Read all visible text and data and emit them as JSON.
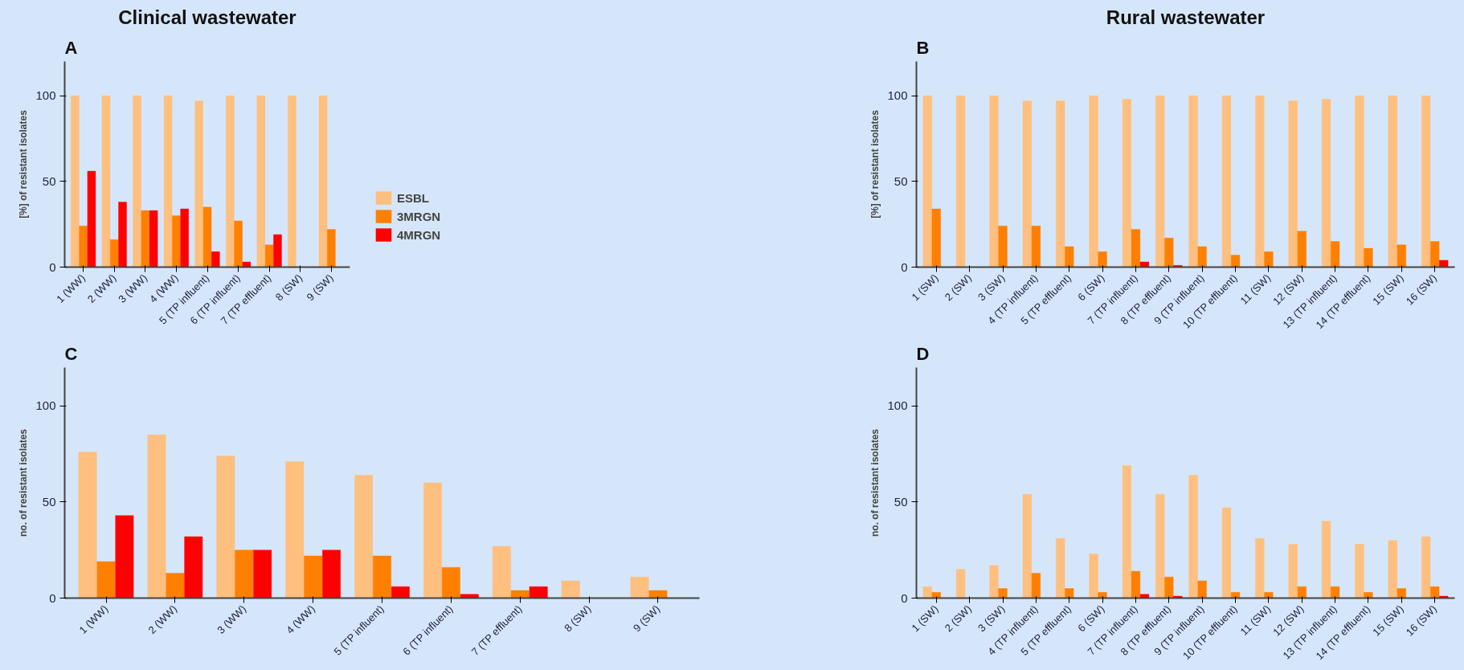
{
  "chart_data": [
    {
      "type": "bar",
      "title": "Clinical wastewater",
      "subtitle": "A",
      "ylabel": "[%] of resistant isolates",
      "categories": [
        "1 (WW)",
        "2 (WW)",
        "3 (WW)",
        "4 (WW)",
        "5 (TP influent)",
        "6 (TP influent)",
        "7 (TP effluent)",
        "8 (SW)",
        "9 (SW)"
      ],
      "ylim": [
        0,
        120
      ],
      "yticks": [
        0,
        50,
        100
      ],
      "grid": false,
      "legend": "right",
      "series": [
        {
          "name": "ESBL",
          "color": "#ffbf7f",
          "values": [
            100,
            100,
            100,
            100,
            97,
            100,
            100,
            100,
            100
          ]
        },
        {
          "name": "3MRGN",
          "color": "#ff8000",
          "values": [
            24,
            16,
            33,
            30,
            35,
            27,
            13,
            0,
            22
          ]
        },
        {
          "name": "4MRGN",
          "color": "#ff0000",
          "values": [
            56,
            38,
            33,
            34,
            9,
            3,
            19,
            0,
            0
          ]
        }
      ]
    },
    {
      "type": "bar",
      "title": "Rural wastewater",
      "subtitle": "B",
      "ylabel": "[%] of resistant isolates",
      "categories": [
        "1 (SW)",
        "2 (SW)",
        "3 (SW)",
        "4 (TP influent)",
        "5 (TP effluent)",
        "6 (SW)",
        "7 (TP influent)",
        "8 (TP effluent)",
        "9 (TP influent)",
        "10 (TP effluent)",
        "11 (SW)",
        "12 (SW)",
        "13 (TP influent)",
        "14 (TP effluent)",
        "15 (SW)",
        "16 (SW)"
      ],
      "ylim": [
        0,
        120
      ],
      "yticks": [
        0,
        50,
        100
      ],
      "grid": false,
      "legend": false,
      "series": [
        {
          "color": "#ffbf7f",
          "values": [
            100,
            100,
            100,
            97,
            97,
            100,
            98,
            100,
            100,
            100,
            100,
            97,
            98,
            100,
            100,
            100
          ]
        },
        {
          "color": "#ff8000",
          "values": [
            34,
            0,
            24,
            24,
            12,
            9,
            22,
            17,
            12,
            7,
            9,
            21,
            15,
            11,
            13,
            15
          ]
        },
        {
          "color": "#ff0000",
          "values": [
            0,
            0,
            0,
            0,
            0,
            0,
            3,
            1,
            0,
            0,
            0,
            0,
            0,
            0,
            0,
            4
          ]
        }
      ]
    },
    {
      "type": "bar",
      "subtitle": "C",
      "ylabel": "no. of resistant isolates",
      "categories": [
        "1 (WW)",
        "2 (WW)",
        "3 (WW)",
        "4 (WW)",
        "5 (TP influent)",
        "6 (TP influent)",
        "7 (TP effluent)",
        "8 (SW)",
        "9 (SW)"
      ],
      "ylim": [
        0,
        120
      ],
      "yticks": [
        0,
        50,
        100
      ],
      "grid": false,
      "legend": false,
      "series": [
        {
          "color": "#ffbf7f",
          "values": [
            76,
            85,
            74,
            71,
            64,
            60,
            27,
            9,
            11
          ]
        },
        {
          "color": "#ff8000",
          "values": [
            19,
            13,
            25,
            22,
            22,
            16,
            4,
            0,
            4
          ]
        },
        {
          "color": "#ff0000",
          "values": [
            43,
            32,
            25,
            25,
            6,
            2,
            6,
            0,
            0
          ]
        }
      ]
    },
    {
      "type": "bar",
      "subtitle": "D",
      "ylabel": "no. of resistant isolates",
      "categories": [
        "1 (SW)",
        "2 (SW)",
        "3 (SW)",
        "4 (TP influent)",
        "5 (TP effluent)",
        "6 (SW)",
        "7 (TP influent)",
        "8 (TP effluent)",
        "9 (TP influent)",
        "10 (TP effluent)",
        "11 (SW)",
        "12 (SW)",
        "13 (TP influent)",
        "14 (TP effluent)",
        "15 (SW)",
        "16 (SW)"
      ],
      "ylim": [
        0,
        120
      ],
      "yticks": [
        0,
        50,
        100
      ],
      "grid": false,
      "legend": false,
      "series": [
        {
          "color": "#ffbf7f",
          "values": [
            6,
            15,
            17,
            54,
            31,
            23,
            69,
            54,
            64,
            47,
            31,
            28,
            40,
            28,
            30,
            32
          ]
        },
        {
          "color": "#ff8000",
          "values": [
            3,
            0,
            5,
            13,
            5,
            3,
            14,
            11,
            9,
            3,
            3,
            6,
            6,
            3,
            5,
            6
          ]
        },
        {
          "color": "#ff0000",
          "values": [
            0,
            0,
            0,
            0,
            0,
            0,
            2,
            1,
            0,
            0,
            0,
            0,
            0,
            0,
            0,
            1
          ]
        }
      ]
    }
  ]
}
